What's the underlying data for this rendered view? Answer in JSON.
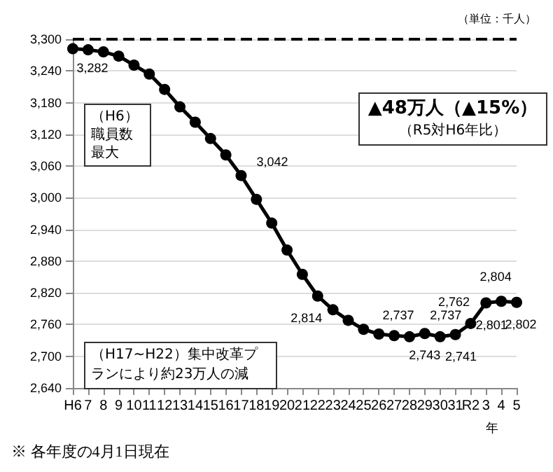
{
  "chart_data": {
    "type": "line",
    "xlabel": "年",
    "categories": [
      "H6",
      "7",
      "8",
      "9",
      "10",
      "11",
      "12",
      "13",
      "14",
      "15",
      "16",
      "17",
      "18",
      "19",
      "20",
      "21",
      "22",
      "23",
      "24",
      "25",
      "26",
      "27",
      "28",
      "29",
      "30",
      "31",
      "R2",
      "3",
      "4",
      "5"
    ],
    "values": [
      3282,
      3280,
      3276,
      3268,
      3251,
      3234,
      3205,
      3172,
      3143,
      3112,
      3081,
      3042,
      2997,
      2952,
      2901,
      2855,
      2814,
      2788,
      2768,
      2751,
      2742,
      2739,
      2737,
      2743,
      2737,
      2741,
      2762,
      2801,
      2804,
      2802
    ],
    "value_labels": [
      "3,282",
      null,
      null,
      null,
      null,
      null,
      null,
      null,
      null,
      null,
      null,
      "3,042",
      null,
      null,
      null,
      null,
      "2,814",
      null,
      null,
      null,
      null,
      null,
      "2,737",
      "2,743",
      "2,737",
      "2,741",
      "2,762",
      "2,801",
      "2,804",
      "2,802"
    ],
    "color": "#000000",
    "marker": "circle",
    "line_style": "solid",
    "ylim": [
      2640,
      3300
    ],
    "yticks": [
      {
        "value": 2640,
        "label": "2,640"
      },
      {
        "value": 2700,
        "label": "2,700"
      },
      {
        "value": 2760,
        "label": "2,760"
      },
      {
        "value": 2820,
        "label": "2,820"
      },
      {
        "value": 2880,
        "label": "2,880"
      },
      {
        "value": 2940,
        "label": "2,940"
      },
      {
        "value": 3000,
        "label": "3,000"
      },
      {
        "value": 3060,
        "label": "3,060"
      },
      {
        "value": 3120,
        "label": "3,120"
      },
      {
        "value": 3180,
        "label": "3,180"
      },
      {
        "value": 3240,
        "label": "3,240"
      },
      {
        "value": 3300,
        "label": "3,300"
      }
    ],
    "grid": "y",
    "legend": false,
    "ref_lines": [
      {
        "axis": "y",
        "value": 3300,
        "line_style": "dashed",
        "color": "#000000"
      }
    ],
    "annotations": [
      "（単位：千人）",
      "▲48万人（▲15%）",
      "（R5対H6年比）",
      "（H6）職員数最大",
      "（H17~H22）集中改革プランにより約23万人の減",
      "※ 各年度の4月1日現在"
    ]
  }
}
